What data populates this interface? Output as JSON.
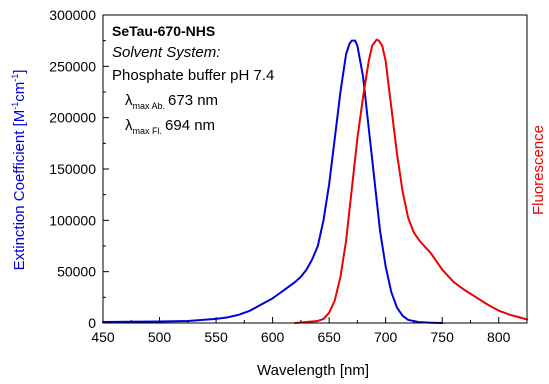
{
  "chart_data": {
    "type": "line",
    "xlabel": "Wavelength [nm]",
    "ylabel_left": "Extinction Coefficient [M",
    "ylabel_left_sup1": "-1",
    "ylabel_left_mid": "cm",
    "ylabel_left_sup2": "-1",
    "ylabel_left_end": "]",
    "ylabel_right": "Fluorescence",
    "xlim": [
      450,
      825
    ],
    "ylim": [
      0,
      300000
    ],
    "x_ticks": [
      450,
      500,
      550,
      600,
      650,
      700,
      750,
      800
    ],
    "y_ticks": [
      0,
      50000,
      100000,
      150000,
      200000,
      250000,
      300000
    ],
    "annotation": {
      "title": "SeTau-670-NHS",
      "solvent_label": "Solvent System:",
      "solvent": "Phosphate buffer pH 7.4",
      "lambda_symbol": "λ",
      "abs_sub": "max Ab.",
      "abs_value": "673 nm",
      "fl_sub": "max Fl.",
      "fl_value": "694 nm"
    },
    "colors": {
      "absorption": "#0000dd",
      "fluorescence": "#ee0000",
      "axis": "#000000"
    },
    "series": [
      {
        "x": [
          450,
          500,
          525,
          550,
          560,
          570,
          580,
          590,
          600,
          605,
          610,
          615,
          620,
          625,
          630,
          635,
          640,
          645,
          650,
          655,
          660,
          665,
          668,
          670,
          673,
          675,
          680,
          685,
          690,
          695,
          700,
          705,
          710,
          715,
          720,
          730,
          740,
          750
        ],
        "values": [
          1000,
          1500,
          2000,
          4000,
          5500,
          8000,
          12000,
          18000,
          24000,
          28000,
          32000,
          36000,
          40000,
          45000,
          52000,
          62000,
          75000,
          100000,
          135000,
          180000,
          225000,
          262000,
          272000,
          275000,
          275000,
          270000,
          240000,
          190000,
          140000,
          90000,
          55000,
          30000,
          15000,
          7000,
          3000,
          800,
          300,
          0
        ]
      },
      {
        "x": [
          620,
          640,
          645,
          650,
          655,
          660,
          665,
          670,
          675,
          680,
          685,
          688,
          692,
          694,
          697,
          700,
          705,
          710,
          715,
          720,
          725,
          730,
          735,
          740,
          745,
          750,
          760,
          770,
          780,
          790,
          800,
          810,
          820,
          825
        ],
        "values": [
          0,
          2000,
          4000,
          10000,
          22000,
          45000,
          80000,
          130000,
          180000,
          220000,
          255000,
          270000,
          276000,
          275000,
          270000,
          255000,
          210000,
          165000,
          128000,
          102000,
          88000,
          80000,
          74000,
          68000,
          60000,
          52000,
          40000,
          32000,
          25000,
          18000,
          12000,
          8000,
          5000,
          3500
        ]
      }
    ]
  }
}
